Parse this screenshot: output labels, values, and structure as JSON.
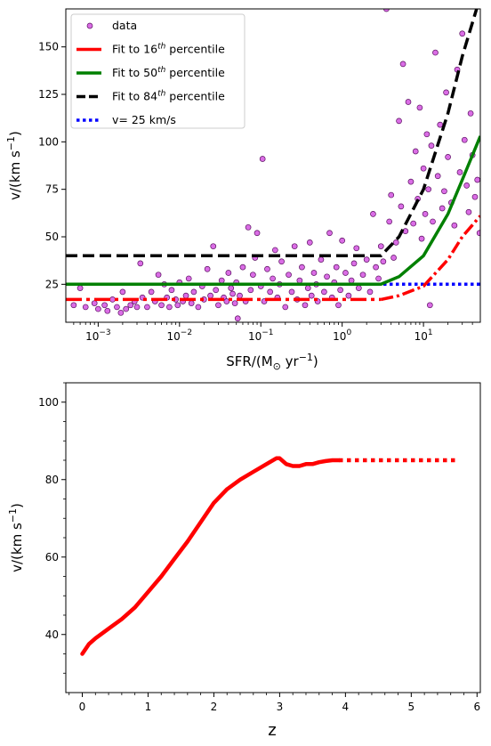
{
  "chart_data": [
    {
      "type": "scatter",
      "xscale": "log",
      "xlim": [
        0.0004,
        50
      ],
      "ylim": [
        5,
        170
      ],
      "xlabel": "SFR/(M",
      "xlabel_sub": "⊙",
      "xlabel_tail": " yr",
      "xlabel_sup": "−1",
      "xlabel_close": ")",
      "ylabel": "v/(km s",
      "ylabel_sup": "−1",
      "ylabel_close": ")",
      "x_ticks": [
        {
          "value": 0.001,
          "base": "10",
          "exp": "−3"
        },
        {
          "value": 0.01,
          "base": "10",
          "exp": "−2"
        },
        {
          "value": 0.1,
          "base": "10",
          "exp": "−1"
        },
        {
          "value": 1,
          "base": "10",
          "exp": "0"
        },
        {
          "value": 10,
          "base": "10",
          "exp": "1"
        }
      ],
      "y_ticks": [
        25,
        50,
        75,
        100,
        125,
        150
      ],
      "legend_position": "top-left",
      "legend": [
        {
          "key": "data",
          "label": "data",
          "style": "marker",
          "color": "#d454e0"
        },
        {
          "key": "p16",
          "label": "Fit to 16",
          "sup": "th",
          "tail": " percentile",
          "style": "solid",
          "color": "#ff0000"
        },
        {
          "key": "p50",
          "label": "Fit to 50",
          "sup": "th",
          "tail": " percentile",
          "style": "solid",
          "color": "#008000"
        },
        {
          "key": "p84",
          "label": "Fit to 84",
          "sup": "th",
          "tail": " percentile",
          "style": "dashed",
          "color": "#000000"
        },
        {
          "key": "v25",
          "label": "v= 25 km/s",
          "style": "dotted",
          "color": "#0000ff"
        }
      ],
      "series": [
        {
          "name": "data",
          "points": [
            [
              0.0005,
              14
            ],
            [
              0.0006,
              23
            ],
            [
              0.0007,
              13
            ],
            [
              0.0009,
              15
            ],
            [
              0.001,
              12
            ],
            [
              0.0012,
              14
            ],
            [
              0.0013,
              11
            ],
            [
              0.0015,
              17
            ],
            [
              0.0017,
              13
            ],
            [
              0.0019,
              10
            ],
            [
              0.002,
              21
            ],
            [
              0.0022,
              12
            ],
            [
              0.0025,
              14
            ],
            [
              0.0028,
              16
            ],
            [
              0.003,
              13
            ],
            [
              0.0033,
              36
            ],
            [
              0.0035,
              18
            ],
            [
              0.004,
              13
            ],
            [
              0.0045,
              21
            ],
            [
              0.005,
              16
            ],
            [
              0.0055,
              30
            ],
            [
              0.006,
              14
            ],
            [
              0.0065,
              25
            ],
            [
              0.007,
              18
            ],
            [
              0.0075,
              13
            ],
            [
              0.008,
              22
            ],
            [
              0.009,
              17
            ],
            [
              0.0095,
              14
            ],
            [
              0.01,
              26
            ],
            [
              0.011,
              16
            ],
            [
              0.012,
              19
            ],
            [
              0.013,
              28
            ],
            [
              0.014,
              15
            ],
            [
              0.015,
              21
            ],
            [
              0.017,
              13
            ],
            [
              0.019,
              24
            ],
            [
              0.02,
              17
            ],
            [
              0.022,
              33
            ],
            [
              0.024,
              19
            ],
            [
              0.026,
              45
            ],
            [
              0.028,
              22
            ],
            [
              0.03,
              14
            ],
            [
              0.033,
              27
            ],
            [
              0.035,
              18
            ],
            [
              0.038,
              16
            ],
            [
              0.04,
              31
            ],
            [
              0.043,
              23
            ],
            [
              0.045,
              20
            ],
            [
              0.048,
              15
            ],
            [
              0.05,
              26
            ],
            [
              0.052,
              7
            ],
            [
              0.055,
              19
            ],
            [
              0.06,
              34
            ],
            [
              0.065,
              16
            ],
            [
              0.07,
              55
            ],
            [
              0.075,
              22
            ],
            [
              0.08,
              30
            ],
            [
              0.085,
              39
            ],
            [
              0.09,
              52
            ],
            [
              0.1,
              24
            ],
            [
              0.105,
              91
            ],
            [
              0.11,
              16
            ],
            [
              0.12,
              33
            ],
            [
              0.13,
              21
            ],
            [
              0.14,
              28
            ],
            [
              0.15,
              43
            ],
            [
              0.16,
              18
            ],
            [
              0.17,
              25
            ],
            [
              0.18,
              37
            ],
            [
              0.2,
              13
            ],
            [
              0.22,
              30
            ],
            [
              0.24,
              21
            ],
            [
              0.26,
              45
            ],
            [
              0.28,
              17
            ],
            [
              0.3,
              27
            ],
            [
              0.32,
              34
            ],
            [
              0.35,
              14
            ],
            [
              0.38,
              23
            ],
            [
              0.4,
              47
            ],
            [
              0.42,
              19
            ],
            [
              0.45,
              31
            ],
            [
              0.48,
              25
            ],
            [
              0.5,
              16
            ],
            [
              0.55,
              38
            ],
            [
              0.6,
              21
            ],
            [
              0.65,
              29
            ],
            [
              0.7,
              52
            ],
            [
              0.75,
              18
            ],
            [
              0.8,
              26
            ],
            [
              0.85,
              34
            ],
            [
              0.9,
              14
            ],
            [
              0.95,
              22
            ],
            [
              1.0,
              48
            ],
            [
              1.1,
              31
            ],
            [
              1.2,
              19
            ],
            [
              1.3,
              27
            ],
            [
              1.4,
              36
            ],
            [
              1.5,
              44
            ],
            [
              1.6,
              23
            ],
            [
              1.8,
              30
            ],
            [
              2.0,
              38
            ],
            [
              2.2,
              21
            ],
            [
              2.4,
              62
            ],
            [
              2.6,
              34
            ],
            [
              2.8,
              28
            ],
            [
              3.0,
              45
            ],
            [
              3.2,
              37
            ],
            [
              3.5,
              170
            ],
            [
              3.8,
              58
            ],
            [
              4.0,
              72
            ],
            [
              4.3,
              39
            ],
            [
              4.6,
              47
            ],
            [
              5.0,
              111
            ],
            [
              5.3,
              66
            ],
            [
              5.6,
              141
            ],
            [
              6.0,
              53
            ],
            [
              6.5,
              121
            ],
            [
              7.0,
              79
            ],
            [
              7.5,
              57
            ],
            [
              8.0,
              95
            ],
            [
              8.5,
              70
            ],
            [
              9.0,
              118
            ],
            [
              9.5,
              49
            ],
            [
              10.0,
              86
            ],
            [
              10.5,
              62
            ],
            [
              11.0,
              104
            ],
            [
              11.5,
              75
            ],
            [
              12.0,
              14
            ],
            [
              12.5,
              98
            ],
            [
              13.0,
              58
            ],
            [
              14.0,
              147
            ],
            [
              15.0,
              82
            ],
            [
              16.0,
              109
            ],
            [
              17.0,
              65
            ],
            [
              18.0,
              74
            ],
            [
              19.0,
              126
            ],
            [
              20.0,
              92
            ],
            [
              22.0,
              68
            ],
            [
              24.0,
              56
            ],
            [
              26.0,
              138
            ],
            [
              28.0,
              84
            ],
            [
              30.0,
              157
            ],
            [
              32.0,
              101
            ],
            [
              34.0,
              77
            ],
            [
              36.0,
              63
            ],
            [
              38.0,
              115
            ],
            [
              40.0,
              93
            ],
            [
              43.0,
              71
            ],
            [
              46.0,
              80
            ],
            [
              49.0,
              52
            ]
          ]
        },
        {
          "name": "Fit to 16th percentile",
          "color": "#ff0000",
          "style": "dashdot-then-solid",
          "x": [
            0.0004,
            3,
            5,
            10,
            20,
            30,
            50
          ],
          "y": [
            17,
            17,
            19,
            24,
            38,
            50,
            61
          ]
        },
        {
          "name": "Fit to 50th percentile",
          "color": "#008000",
          "style": "solid",
          "x": [
            0.0004,
            3,
            5,
            10,
            20,
            30,
            50
          ],
          "y": [
            25,
            25,
            29,
            40,
            62,
            80,
            103
          ]
        },
        {
          "name": "Fit to 84th percentile",
          "color": "#000000",
          "style": "dashed",
          "x": [
            0.0004,
            3,
            5,
            10,
            20,
            30,
            45
          ],
          "y": [
            40,
            40,
            50,
            75,
            115,
            145,
            170
          ]
        },
        {
          "name": "v= 25 km/s",
          "color": "#0000ff",
          "style": "dotted",
          "x": [
            0.0004,
            50
          ],
          "y": [
            25,
            25
          ]
        }
      ]
    },
    {
      "type": "line",
      "xlim": [
        -0.25,
        6.05
      ],
      "ylim": [
        25,
        105
      ],
      "xlabel": "z",
      "ylabel": "v/(km s",
      "ylabel_sup": "−1",
      "ylabel_close": ")",
      "x_ticks": [
        0,
        1,
        2,
        3,
        4,
        5,
        6
      ],
      "y_ticks": [
        40,
        60,
        80,
        100
      ],
      "series": [
        {
          "name": "solid",
          "color": "#ff0000",
          "x": [
            0,
            0.1,
            0.2,
            0.4,
            0.6,
            0.8,
            1.0,
            1.2,
            1.4,
            1.6,
            1.8,
            2.0,
            2.2,
            2.4,
            2.6,
            2.8,
            2.95,
            3.0,
            3.1,
            3.2,
            3.3,
            3.4,
            3.5,
            3.6,
            3.7,
            3.8,
            3.9
          ],
          "y": [
            35,
            37.5,
            39,
            41.5,
            44,
            47,
            51,
            55,
            59.5,
            64,
            69,
            74,
            77.5,
            80,
            82,
            84,
            85.5,
            85.5,
            84,
            83.5,
            83.5,
            84,
            84,
            84.5,
            84.8,
            85,
            85
          ]
        },
        {
          "name": "dotted",
          "color": "#ff0000",
          "x": [
            3.9,
            5.7
          ],
          "y": [
            85,
            85
          ]
        }
      ]
    }
  ]
}
